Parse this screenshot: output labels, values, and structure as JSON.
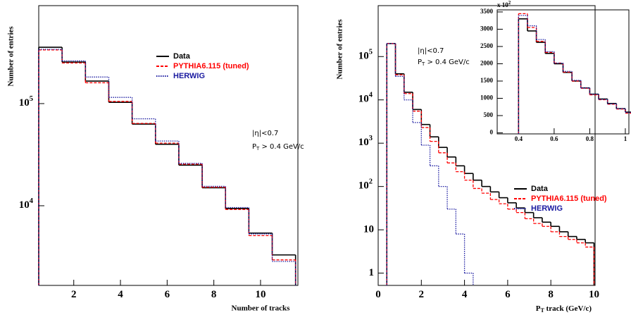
{
  "chart_data": [
    {
      "type": "histogram",
      "x_label": "Number of tracks",
      "y_label": "Number of entries",
      "log_y": true,
      "legend": true,
      "annotation": "|η|<0.7",
      "annotation_pt": {
        "main": "P",
        "sub": "T",
        "rest": " > 0.4 GeV/c"
      },
      "bins": [
        0.5,
        1.5,
        2.5,
        3.5,
        4.5,
        5.5,
        6.5,
        7.5,
        8.5,
        9.5,
        10.5,
        11.5
      ],
      "xlim": [
        0.5,
        11.6
      ],
      "ylim": [
        1660,
        910000
      ],
      "xticks": [
        2,
        4,
        6,
        8,
        10
      ],
      "yticks": [
        {
          "value": 10000,
          "label": "10",
          "exponent": "4"
        },
        {
          "value": 100000,
          "label": "10",
          "exponent": "5"
        }
      ],
      "series": [
        {
          "name": "Data",
          "color": "#000000",
          "line_style": "solid",
          "values": [
            356000,
            255000,
            166000,
            103000,
            63000,
            40000,
            25000,
            15000,
            9400,
            5400,
            3300
          ]
        },
        {
          "name": "PYTHIA6.115 (tuned)",
          "color": "#ff0000",
          "line_style": "dashed",
          "values": [
            335000,
            250000,
            160000,
            105000,
            64000,
            41000,
            25500,
            15200,
            9200,
            5100,
            2950
          ]
        },
        {
          "name": "HERWIG",
          "color": "#1a1aa0",
          "line_style": "dotted",
          "values": [
            340000,
            262000,
            182000,
            115000,
            71000,
            43000,
            26000,
            15500,
            9600,
            5300,
            2850
          ]
        }
      ]
    },
    {
      "type": "histogram",
      "x_label": "P",
      "x_label_sub": "T",
      "x_label_rest": " track (GeV/c)",
      "y_label": "Number of entries",
      "log_y": true,
      "legend": true,
      "annotation": "|η|<0.7",
      "annotation_pt": {
        "main": "P",
        "sub": "T",
        "rest": " > 0.4 GeV/c"
      },
      "bins": [
        0.4,
        0.8,
        1.2,
        1.6,
        2.0,
        2.4,
        2.8,
        3.2,
        3.6,
        4.0,
        4.4,
        4.8,
        5.2,
        5.6,
        6.0,
        6.4,
        6.8,
        7.2,
        7.6,
        8.0,
        8.4,
        8.8,
        9.2,
        9.6,
        10.0
      ],
      "xlim": [
        0,
        10.05
      ],
      "ylim": [
        0.52,
        1500000
      ],
      "xticks": [
        0,
        2,
        4,
        6,
        8,
        10
      ],
      "yticks": [
        1,
        10,
        {
          "value": 100,
          "label": "10",
          "exponent": "2"
        },
        {
          "value": 1000,
          "label": "10",
          "exponent": "3"
        },
        {
          "value": 10000,
          "label": "10",
          "exponent": "4"
        },
        {
          "value": 100000,
          "label": "10",
          "exponent": "5"
        }
      ],
      "series": [
        {
          "name": "Data",
          "color": "#000000",
          "line_style": "solid",
          "values": [
            200000,
            40000,
            15000,
            6000,
            2700,
            1400,
            800,
            480,
            300,
            200,
            140,
            100,
            75,
            55,
            42,
            32,
            25,
            19,
            15,
            12,
            9,
            7,
            6,
            5
          ]
        },
        {
          "name": "PYTHIA6.115 (tuned)",
          "color": "#ff0000",
          "line_style": "dashed",
          "values": [
            200000,
            38000,
            14000,
            5500,
            2300,
            1100,
            600,
            350,
            220,
            140,
            90,
            70,
            50,
            40,
            30,
            25,
            18,
            14,
            12,
            9,
            7,
            6,
            5,
            4
          ]
        },
        {
          "name": "HERWIG",
          "color": "#1a1aa0",
          "line_style": "dotted",
          "values": [
            200000,
            35000,
            10000,
            3000,
            900,
            300,
            100,
            30,
            8,
            1,
            null,
            null,
            null,
            null,
            null,
            null,
            null,
            null,
            null,
            null,
            null,
            null,
            null,
            null
          ]
        }
      ]
    },
    {
      "type": "histogram",
      "inset_label": "x 10",
      "inset_exponent": "2",
      "log_y": false,
      "legend": false,
      "bins": [
        0.4,
        0.45,
        0.5,
        0.55,
        0.6,
        0.65,
        0.7,
        0.75,
        0.8,
        0.85,
        0.9,
        0.95,
        1.0,
        1.05
      ],
      "xlim": [
        0.28,
        1.02
      ],
      "ylim": [
        -30,
        3560
      ],
      "xticks": [
        0.4,
        0.6,
        0.8,
        1
      ],
      "yticks": [
        0,
        500,
        1000,
        1500,
        2000,
        2500,
        3000,
        3500
      ],
      "series": [
        {
          "name": "Data",
          "color": "#000000",
          "line_style": "solid",
          "values": [
            3300,
            2950,
            2620,
            2300,
            2000,
            1750,
            1500,
            1300,
            1120,
            980,
            850,
            700,
            600
          ]
        },
        {
          "name": "PYTHIA6.115 (tuned)",
          "color": "#ff0000",
          "line_style": "dashed",
          "values": [
            3450,
            3050,
            2650,
            2330,
            2020,
            1760,
            1500,
            1290,
            1100,
            960,
            830,
            690,
            570
          ]
        },
        {
          "name": "HERWIG",
          "color": "#1a1aa0",
          "line_style": "dotted",
          "values": [
            3400,
            3100,
            2700,
            2350,
            2020,
            1780,
            1520,
            1300,
            1120,
            970,
            840,
            700,
            590
          ]
        }
      ]
    }
  ]
}
